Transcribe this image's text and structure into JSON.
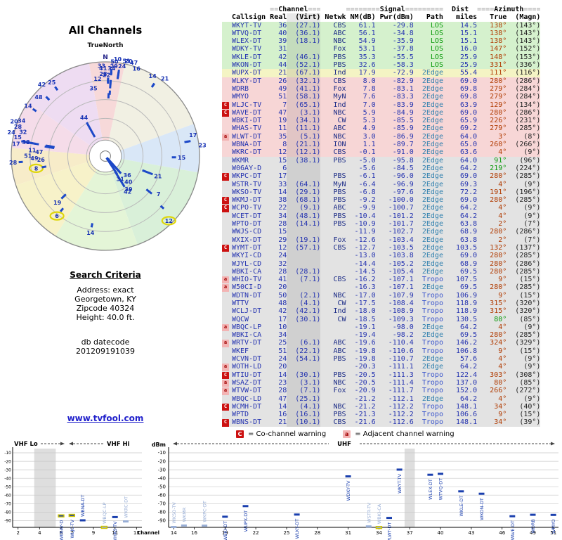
{
  "title": "All Channels",
  "radar": {
    "true_north": "TrueNorth"
  },
  "search": {
    "heading": "Search Criteria",
    "lines": [
      "Address: exact",
      "Georgetown, KY",
      "Zipcode 40324",
      "Height: 40.0 ft."
    ],
    "datecode_label": "db datecode",
    "datecode": "201209191039"
  },
  "link": "www.tvfool.com",
  "legend": {
    "co_symbol": "C",
    "co": "= Co-channel warning",
    "adj_symbol": "a",
    "adj": "= Adjacent channel warning"
  },
  "table": {
    "groups": {
      "channel": "Channel",
      "signal": "Signal",
      "dist": "Dist",
      "azimuth": "Azimuth"
    },
    "columns": [
      "Callsign",
      "Real",
      "(Virt)",
      "Netwk",
      "NM(dB)",
      "Pwr(dBm)",
      "Path",
      "miles",
      "True",
      "(Magn)"
    ],
    "rows": [
      {
        "warn": "",
        "callsign": "WKYT-TV",
        "real": "36",
        "virt": "(27.1)",
        "netwk": "CBS",
        "nm": "61.1",
        "pwr": "-29.8",
        "path": "LOS",
        "miles": "14.5",
        "true": "138°",
        "magn": "(143°)",
        "band": "green"
      },
      {
        "warn": "",
        "callsign": "WTVQ-DT",
        "real": "40",
        "virt": "(36.1)",
        "netwk": "ABC",
        "nm": "56.1",
        "pwr": "-34.8",
        "path": "LOS",
        "miles": "15.1",
        "true": "138°",
        "magn": "(143°)",
        "band": "green"
      },
      {
        "warn": "",
        "callsign": "WLEX-DT",
        "real": "39",
        "virt": "(18.1)",
        "netwk": "NBC",
        "nm": "54.9",
        "pwr": "-35.9",
        "path": "LOS",
        "miles": "15.1",
        "true": "138°",
        "magn": "(143°)",
        "band": "green"
      },
      {
        "warn": "",
        "callsign": "WDKY-TV",
        "real": "31",
        "virt": "",
        "netwk": "Fox",
        "nm": "53.1",
        "pwr": "-37.8",
        "path": "LOS",
        "miles": "16.0",
        "true": "147°",
        "magn": "(152°)",
        "band": "green"
      },
      {
        "warn": "",
        "callsign": "WKLE-DT",
        "real": "42",
        "virt": "(46.1)",
        "netwk": "PBS",
        "nm": "35.3",
        "pwr": "-55.5",
        "path": "LOS",
        "miles": "25.9",
        "true": "148°",
        "magn": "(153°)",
        "band": "green"
      },
      {
        "warn": "",
        "callsign": "WKON-DT",
        "real": "44",
        "virt": "(52.1)",
        "netwk": "PBS",
        "nm": "32.6",
        "pwr": "-58.3",
        "path": "LOS",
        "miles": "25.9",
        "true": "331°",
        "magn": "(336°)",
        "band": "green"
      },
      {
        "warn": "",
        "callsign": "WUPX-DT",
        "real": "21",
        "virt": "(67.1)",
        "netwk": "Ind",
        "nm": "17.9",
        "pwr": "-72.9",
        "path": "2Edge",
        "miles": "55.4",
        "true": "111°",
        "magn": "(116°)",
        "band": "yellow"
      },
      {
        "warn": "",
        "callsign": "WLKY-DT",
        "real": "26",
        "virt": "(32.1)",
        "netwk": "CBS",
        "nm": "8.0",
        "pwr": "-82.9",
        "path": "2Edge",
        "miles": "69.0",
        "true": "280°",
        "magn": "(286°)",
        "band": "pink"
      },
      {
        "warn": "",
        "callsign": "WDRB",
        "real": "49",
        "virt": "(41.1)",
        "netwk": "Fox",
        "nm": "7.8",
        "pwr": "-83.1",
        "path": "2Edge",
        "miles": "69.8",
        "true": "279°",
        "magn": "(284°)",
        "band": "pink"
      },
      {
        "warn": "",
        "callsign": "WMYO",
        "real": "51",
        "virt": "(58.1)",
        "netwk": "MyN",
        "nm": "7.6",
        "pwr": "-83.3",
        "path": "2Edge",
        "miles": "69.8",
        "true": "279°",
        "magn": "(284°)",
        "band": "pink"
      },
      {
        "warn": "C",
        "callsign": "WLJC-TV",
        "real": "7",
        "virt": "(65.1)",
        "netwk": "Ind",
        "nm": "7.0",
        "pwr": "-83.9",
        "path": "2Edge",
        "miles": "63.9",
        "true": "129°",
        "magn": "(134°)",
        "band": "pink",
        "analog": true
      },
      {
        "warn": "C",
        "callsign": "WAVE-DT",
        "real": "47",
        "virt": "(3.1)",
        "netwk": "NBC",
        "nm": "5.9",
        "pwr": "-84.9",
        "path": "2Edge",
        "miles": "69.0",
        "true": "280°",
        "magn": "(286°)",
        "band": "pink"
      },
      {
        "warn": "",
        "callsign": "WBKI-DT",
        "real": "19",
        "virt": "(34.1)",
        "netwk": "CW",
        "nm": "5.3",
        "pwr": "-85.5",
        "path": "2Edge",
        "miles": "65.9",
        "true": "226°",
        "magn": "(231°)",
        "band": "pink"
      },
      {
        "warn": "",
        "callsign": "WHAS-TV",
        "real": "11",
        "virt": "(11.1)",
        "netwk": "ABC",
        "nm": "4.9",
        "pwr": "-85.9",
        "path": "2Edge",
        "miles": "69.2",
        "true": "279°",
        "magn": "(285°)",
        "band": "pink"
      },
      {
        "warn": "a",
        "callsign": "WLWT-DT",
        "real": "35",
        "virt": "(5.1)",
        "netwk": "NBC",
        "nm": "3.0",
        "pwr": "-86.9",
        "path": "2Edge",
        "miles": "64.0",
        "true": "3°",
        "magn": "(8°)",
        "band": "pink"
      },
      {
        "warn": "",
        "callsign": "WBNA-DT",
        "real": "8",
        "virt": "(21.1)",
        "netwk": "ION",
        "nm": "1.1",
        "pwr": "-89.7",
        "path": "2Edge",
        "miles": "65.0",
        "true": "260°",
        "magn": "(266°)",
        "band": "pink"
      },
      {
        "warn": "",
        "callsign": "WKRC-DT",
        "real": "12",
        "virt": "(12.1)",
        "netwk": "CBS",
        "nm": "-0.1",
        "pwr": "-91.0",
        "path": "2Edge",
        "miles": "63.6",
        "true": "4°",
        "magn": "(9°)",
        "band": "pink"
      },
      {
        "warn": "",
        "callsign": "WKMR",
        "real": "15",
        "virt": "(38.1)",
        "netwk": "PBS",
        "nm": "-5.0",
        "pwr": "-95.8",
        "path": "2Edge",
        "miles": "64.0",
        "true": "91°",
        "magn": "(96°)",
        "band": "gray",
        "az_color": "green"
      },
      {
        "warn": "",
        "callsign": "W06AY-D",
        "real": "6",
        "virt": "",
        "netwk": "",
        "nm": "-5.6",
        "pwr": "-84.5",
        "path": "2Edge",
        "miles": "64.2",
        "true": "219°",
        "magn": "(224°)",
        "band": "gray",
        "analog": true,
        "az_color": "green"
      },
      {
        "warn": "C",
        "callsign": "WKPC-DT",
        "real": "17",
        "virt": "",
        "netwk": "PBS",
        "nm": "-6.1",
        "pwr": "-96.0",
        "path": "2Edge",
        "miles": "69.0",
        "true": "280°",
        "magn": "(285°)",
        "band": "gray"
      },
      {
        "warn": "",
        "callsign": "WSTR-TV",
        "real": "33",
        "virt": "(64.1)",
        "netwk": "MyN",
        "nm": "-6.4",
        "pwr": "-96.9",
        "path": "2Edge",
        "miles": "69.3",
        "true": "4°",
        "magn": "(9°)",
        "band": "gray"
      },
      {
        "warn": "",
        "callsign": "WKSO-TV",
        "real": "14",
        "virt": "(29.1)",
        "netwk": "PBS",
        "nm": "-6.8",
        "pwr": "-97.6",
        "path": "2Edge",
        "miles": "72.2",
        "true": "191°",
        "magn": "(196°)",
        "band": "gray"
      },
      {
        "warn": "C",
        "callsign": "WKMJ-DT",
        "real": "38",
        "virt": "(68.1)",
        "netwk": "PBS",
        "nm": "-9.2",
        "pwr": "-100.0",
        "path": "2Edge",
        "miles": "69.0",
        "true": "280°",
        "magn": "(285°)",
        "band": "gray"
      },
      {
        "warn": "C",
        "callsign": "WCPO-TV",
        "real": "22",
        "virt": "(9.1)",
        "netwk": "ABC",
        "nm": "-9.9",
        "pwr": "-100.7",
        "path": "2Edge",
        "miles": "64.2",
        "true": "4°",
        "magn": "(9°)",
        "band": "gray"
      },
      {
        "warn": "",
        "callsign": "WCET-DT",
        "real": "34",
        "virt": "(48.1)",
        "netwk": "PBS",
        "nm": "-10.4",
        "pwr": "-101.2",
        "path": "2Edge",
        "miles": "64.2",
        "true": "4°",
        "magn": "(9°)",
        "band": "gray"
      },
      {
        "warn": "",
        "callsign": "WPTO-DT",
        "real": "28",
        "virt": "(14.1)",
        "netwk": "PBS",
        "nm": "-10.9",
        "pwr": "-101.7",
        "path": "2Edge",
        "miles": "63.8",
        "true": "2°",
        "magn": "(7°)",
        "band": "gray"
      },
      {
        "warn": "",
        "callsign": "WWJS-CD",
        "real": "15",
        "virt": "",
        "netwk": "",
        "nm": "-11.9",
        "pwr": "-102.7",
        "path": "2Edge",
        "miles": "68.9",
        "true": "280°",
        "magn": "(286°)",
        "band": "gray"
      },
      {
        "warn": "",
        "callsign": "WXIX-DT",
        "real": "29",
        "virt": "(19.1)",
        "netwk": "Fox",
        "nm": "-12.6",
        "pwr": "-103.4",
        "path": "2Edge",
        "miles": "63.8",
        "true": "2°",
        "magn": "(7°)",
        "band": "gray"
      },
      {
        "warn": "C",
        "callsign": "WYMT-DT",
        "real": "12",
        "virt": "(57.1)",
        "netwk": "CBS",
        "nm": "-12.7",
        "pwr": "-103.5",
        "path": "2Edge",
        "miles": "103.5",
        "true": "132°",
        "magn": "(137°)",
        "band": "gray"
      },
      {
        "warn": "",
        "callsign": "WKYI-CD",
        "real": "24",
        "virt": "",
        "netwk": "",
        "nm": "-13.0",
        "pwr": "-103.8",
        "path": "2Edge",
        "miles": "69.0",
        "true": "280°",
        "magn": "(285°)",
        "band": "gray"
      },
      {
        "warn": "",
        "callsign": "WJYL-CD",
        "real": "32",
        "virt": "",
        "netwk": "",
        "nm": "-14.4",
        "pwr": "-105.2",
        "path": "2Edge",
        "miles": "68.9",
        "true": "280°",
        "magn": "(286°)",
        "band": "gray"
      },
      {
        "warn": "",
        "callsign": "WBKI-CA",
        "real": "28",
        "virt": "(28.1)",
        "netwk": "",
        "nm": "-14.5",
        "pwr": "-105.4",
        "path": "2Edge",
        "miles": "69.5",
        "true": "280°",
        "magn": "(285°)",
        "band": "gray"
      },
      {
        "warn": "a",
        "callsign": "WHIO-TV",
        "real": "41",
        "virt": "(7.1)",
        "netwk": "CBS",
        "nm": "-16.2",
        "pwr": "-107.1",
        "path": "Tropo",
        "miles": "107.5",
        "true": "9°",
        "magn": "(15°)",
        "band": "gray"
      },
      {
        "warn": "a",
        "callsign": "W50CI-D",
        "real": "20",
        "virt": "",
        "netwk": "",
        "nm": "-16.3",
        "pwr": "-107.1",
        "path": "2Edge",
        "miles": "69.5",
        "true": "280°",
        "magn": "(285°)",
        "band": "gray"
      },
      {
        "warn": "",
        "callsign": "WDTN-DT",
        "real": "50",
        "virt": "(2.1)",
        "netwk": "NBC",
        "nm": "-17.0",
        "pwr": "-107.9",
        "path": "Tropo",
        "miles": "106.9",
        "true": "9°",
        "magn": "(15°)",
        "band": "gray"
      },
      {
        "warn": "",
        "callsign": "WTTV",
        "real": "48",
        "virt": "(4.1)",
        "netwk": "CW",
        "nm": "-17.5",
        "pwr": "-108.4",
        "path": "Tropo",
        "miles": "118.9",
        "true": "315°",
        "magn": "(320°)",
        "band": "gray"
      },
      {
        "warn": "",
        "callsign": "WCLJ-DT",
        "real": "42",
        "virt": "(42.1)",
        "netwk": "Ind",
        "nm": "-18.0",
        "pwr": "-108.9",
        "path": "Tropo",
        "miles": "118.9",
        "true": "315°",
        "magn": "(320°)",
        "band": "gray"
      },
      {
        "warn": "",
        "callsign": "WQCW",
        "real": "17",
        "virt": "(30.1)",
        "netwk": "CW",
        "nm": "-18.5",
        "pwr": "-109.3",
        "path": "Tropo",
        "miles": "130.5",
        "true": "80°",
        "magn": "(85°)",
        "band": "gray",
        "az_color": "green"
      },
      {
        "warn": "a",
        "callsign": "WBQC-LP",
        "real": "10",
        "virt": "",
        "netwk": "",
        "nm": "-19.1",
        "pwr": "-98.0",
        "path": "2Edge",
        "miles": "64.2",
        "true": "4°",
        "magn": "(9°)",
        "band": "gray",
        "analog": true
      },
      {
        "warn": "",
        "callsign": "WBKI-CA",
        "real": "34",
        "virt": "",
        "netwk": "",
        "nm": "-19.4",
        "pwr": "-98.2",
        "path": "2Edge",
        "miles": "69.5",
        "true": "280°",
        "magn": "(285°)",
        "band": "gray",
        "analog": true
      },
      {
        "warn": "a",
        "callsign": "WRTV-DT",
        "real": "25",
        "virt": "(6.1)",
        "netwk": "ABC",
        "nm": "-19.6",
        "pwr": "-110.4",
        "path": "Tropo",
        "miles": "146.2",
        "true": "324°",
        "magn": "(329°)",
        "band": "gray"
      },
      {
        "warn": "",
        "callsign": "WKEF",
        "real": "51",
        "virt": "(22.1)",
        "netwk": "ABC",
        "nm": "-19.8",
        "pwr": "-110.6",
        "path": "Tropo",
        "miles": "106.8",
        "true": "9°",
        "magn": "(15°)",
        "band": "gray"
      },
      {
        "warn": "",
        "callsign": "WCVN-DT",
        "real": "24",
        "virt": "(54.1)",
        "netwk": "PBS",
        "nm": "-19.8",
        "pwr": "-110.7",
        "path": "2Edge",
        "miles": "57.6",
        "true": "4°",
        "magn": "(9°)",
        "band": "gray"
      },
      {
        "warn": "a",
        "callsign": "WOTH-LD",
        "real": "20",
        "virt": "",
        "netwk": "",
        "nm": "-20.3",
        "pwr": "-111.1",
        "path": "2Edge",
        "miles": "64.2",
        "true": "4°",
        "magn": "(9°)",
        "band": "gray"
      },
      {
        "warn": "C",
        "callsign": "WTIU-DT",
        "real": "14",
        "virt": "(30.1)",
        "netwk": "PBS",
        "nm": "-20.5",
        "pwr": "-111.3",
        "path": "Tropo",
        "miles": "122.4",
        "true": "303°",
        "magn": "(308°)",
        "band": "gray"
      },
      {
        "warn": "a",
        "callsign": "WSAZ-DT",
        "real": "23",
        "virt": "(3.1)",
        "netwk": "NBC",
        "nm": "-20.5",
        "pwr": "-111.4",
        "path": "Tropo",
        "miles": "137.0",
        "true": "80°",
        "magn": "(85°)",
        "band": "gray"
      },
      {
        "warn": "a",
        "callsign": "WTVW-DT",
        "real": "28",
        "virt": "(7.1)",
        "netwk": "Fox",
        "nm": "-20.9",
        "pwr": "-111.7",
        "path": "Tropo",
        "miles": "152.0",
        "true": "266°",
        "magn": "(272°)",
        "band": "gray"
      },
      {
        "warn": "",
        "callsign": "WBQC-LD",
        "real": "47",
        "virt": "(25.1)",
        "netwk": "",
        "nm": "-21.2",
        "pwr": "-112.1",
        "path": "2Edge",
        "miles": "64.2",
        "true": "4°",
        "magn": "(9°)",
        "band": "gray"
      },
      {
        "warn": "C",
        "callsign": "WCMH-DT",
        "real": "14",
        "virt": "(4.1)",
        "netwk": "NBC",
        "nm": "-21.2",
        "pwr": "-112.2",
        "path": "Tropo",
        "miles": "148.1",
        "true": "34°",
        "magn": "(40°)",
        "band": "gray"
      },
      {
        "warn": "",
        "callsign": "WPTD",
        "real": "16",
        "virt": "(16.1)",
        "netwk": "PBS",
        "nm": "-21.3",
        "pwr": "-112.2",
        "path": "Tropo",
        "miles": "106.6",
        "true": "9°",
        "magn": "(15°)",
        "band": "gray"
      },
      {
        "warn": "C",
        "callsign": "WBNS-DT",
        "real": "21",
        "virt": "(10.1)",
        "netwk": "CBS",
        "nm": "-21.6",
        "pwr": "-112.6",
        "path": "Tropo",
        "miles": "148.1",
        "true": "34°",
        "magn": "(39°)",
        "band": "gray"
      }
    ]
  },
  "chart_data": [
    {
      "type": "scatter",
      "name": "azimuth-radar",
      "title": "All Channels",
      "north_label": "N",
      "radius_encoding": "signal strength (NM dB), strongest near center",
      "points_from": "table.rows: angle = true azimuth, radius = NM(dB), label = real channel",
      "rings": 5,
      "sectors": [
        {
          "from": 350,
          "to": 12,
          "color": "#f7d9d9"
        },
        {
          "from": 12,
          "to": 70,
          "color": "#f1f0e3"
        },
        {
          "from": 70,
          "to": 100,
          "color": "#d9e7f7"
        },
        {
          "from": 100,
          "to": 160,
          "color": "#d9f0d9"
        },
        {
          "from": 160,
          "to": 212,
          "color": "#e4f5d7"
        },
        {
          "from": 212,
          "to": 252,
          "color": "#f7f2c9"
        },
        {
          "from": 252,
          "to": 275,
          "color": "#f7ecc9"
        },
        {
          "from": 275,
          "to": 305,
          "color": "#f5dce9"
        },
        {
          "from": 305,
          "to": 350,
          "color": "#eedcf2"
        }
      ],
      "highlights": [
        {
          "channel": "8",
          "az": 260
        },
        {
          "channel": "6",
          "az": 219
        },
        {
          "channel": "12",
          "az": 132
        }
      ]
    },
    {
      "type": "scatter",
      "name": "spectrum",
      "xlabel": "Channel",
      "ylabel": "dBm",
      "y_ticks": [
        -10,
        -20,
        -30,
        -40,
        -50,
        -60,
        -70,
        -80,
        -90
      ],
      "points_from": "table.rows: x = real channel, y = Pwr(dBm), label = callsign",
      "panels": [
        {
          "band_labels": [
            "VHF Lo",
            "VHF Hi"
          ],
          "x_range": [
            2,
            13
          ],
          "x_ticks": [
            2,
            4,
            6,
            7,
            9,
            11,
            13
          ],
          "shaded_channels": [
            4,
            5
          ]
        },
        {
          "band_labels": [
            "UHF"
          ],
          "x_range": [
            14,
            51
          ],
          "x_ticks": [
            14,
            16,
            19,
            22,
            25,
            28,
            31,
            34,
            37,
            40,
            43,
            46,
            49,
            51
          ],
          "shaded_channels": [
            37
          ]
        }
      ]
    }
  ]
}
